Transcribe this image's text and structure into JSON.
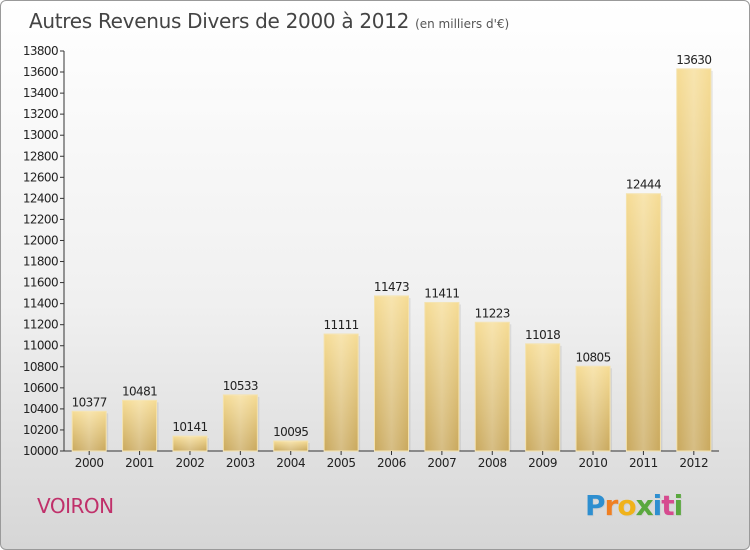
{
  "chart_data": {
    "type": "bar",
    "title": "Autres Revenus Divers de 2000 à 2012",
    "subtitle": "(en milliers d'€)",
    "categories": [
      "2000",
      "2001",
      "2002",
      "2003",
      "2004",
      "2005",
      "2006",
      "2007",
      "2008",
      "2009",
      "2010",
      "2011",
      "2012"
    ],
    "values": [
      10377,
      10481,
      10141,
      10533,
      10095,
      11111,
      11473,
      11411,
      11223,
      11018,
      10805,
      12444,
      13630
    ],
    "ylim": [
      10000,
      13800
    ],
    "yticks": [
      10000,
      10200,
      10400,
      10600,
      10800,
      11000,
      11200,
      11400,
      11600,
      11800,
      12000,
      12200,
      12400,
      12600,
      12800,
      13000,
      13200,
      13400,
      13600,
      13800
    ],
    "grid": false,
    "legend": "none",
    "bar_color": "#e8c877",
    "xlabel": "",
    "ylabel": ""
  },
  "location": "VOIRON",
  "logo": {
    "letters": [
      "P",
      "r",
      "o",
      "x",
      "i",
      "t",
      "i"
    ],
    "colors": [
      "#2e8fd0",
      "#ef7f22",
      "#f0b21a",
      "#5aa83e",
      "#2e8fd0",
      "#d64b8f",
      "#5aa83e"
    ]
  },
  "colors": {
    "location": "#c0306a"
  }
}
